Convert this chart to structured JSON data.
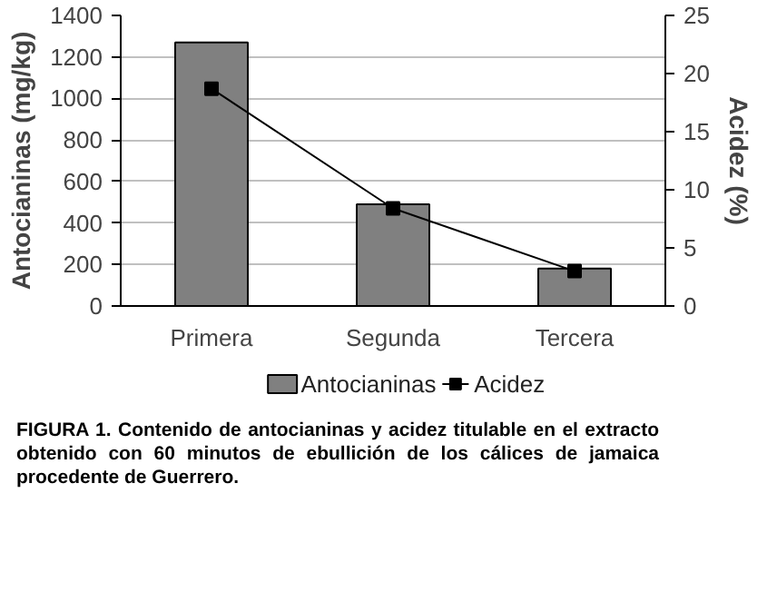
{
  "chart_data": {
    "type": "bar",
    "categories": [
      "Primera",
      "Segunda",
      "Tercera"
    ],
    "series": [
      {
        "name": "Antocianinas",
        "color": "#808080",
        "values": [
          1270,
          490,
          180
        ]
      },
      {
        "name": "Acidez",
        "type": "line",
        "axis": "y2",
        "color": "#000000",
        "values": [
          18.7,
          8.4,
          3.0
        ],
        "marker": "square"
      }
    ],
    "ylabel": "Antocianinas (mg/kg)",
    "y2label": "Acidez (%)",
    "ylim": [
      0,
      1400
    ],
    "yticks": [
      0,
      200,
      400,
      600,
      800,
      1000,
      1200,
      1400
    ],
    "y2lim": [
      0,
      25
    ],
    "y2ticks": [
      0,
      5,
      10,
      15,
      20,
      25
    ],
    "grid": "y",
    "legend": "bottom",
    "annotations": [
      "FIGURA 1. Contenido de antocianinas y acidez titulable en el extracto obtenido con 60 minutos de ebullición de los cálices de jamaica procedente de Guerrero."
    ]
  }
}
